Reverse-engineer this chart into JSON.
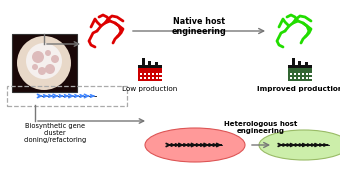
{
  "bg_color": "#ffffff",
  "red_bacteria_color": "#dd0000",
  "green_bacteria_color": "#22dd00",
  "factory_red_wall": "#cc0000",
  "factory_red_windows": "#cc0000",
  "factory_green_wall": "#336633",
  "factory_black": "#111111",
  "pink_ellipse_face": "#ff9999",
  "pink_ellipse_edge": "#dd5555",
  "green_ellipse_face": "#cceeaa",
  "green_ellipse_edge": "#99bb66",
  "gene_arrow_blue": "#4488ff",
  "gene_arrow_black": "#111111",
  "dashed_box_color": "#aaaaaa",
  "arrow_color": "#777777",
  "text_color": "#000000",
  "label_native": "Native host\nengineering",
  "label_low": "Low production",
  "label_improved": "Improved production",
  "label_biosynthetic": "Biosynthetic gene\ncluster\ncloning/refactoring",
  "label_heterologous": "Heterologous host\nengineering",
  "figsize": [
    3.4,
    1.89
  ],
  "dpi": 100
}
